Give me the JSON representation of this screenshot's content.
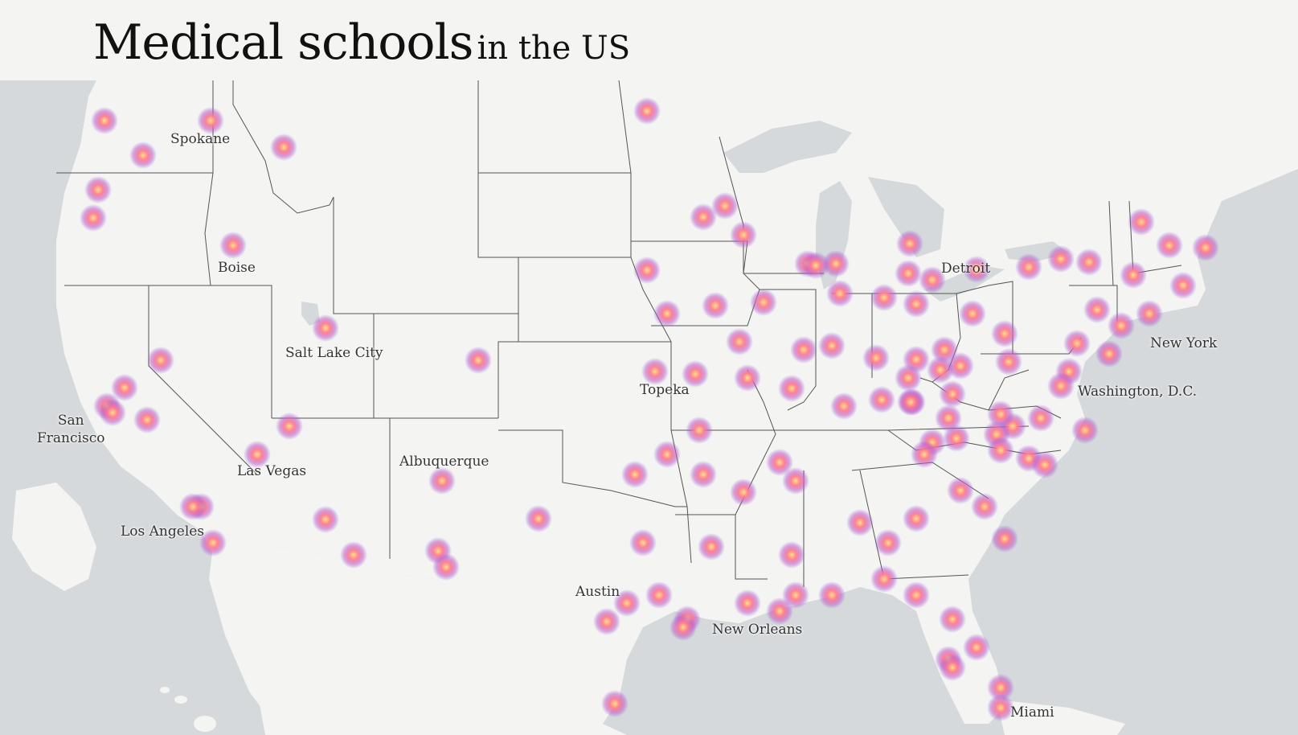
{
  "title": {
    "main": "Medical schools",
    "sub": "in the US"
  },
  "colors": {
    "water": "#d6d9db",
    "land": "#f4f4f2",
    "state_border": "#555555",
    "heat_core": "#ffd87a",
    "heat_mid": "#ff6f8a",
    "heat_edge": "#8a5ad8"
  },
  "cities": [
    {
      "name": "Spokane",
      "lines": [
        "Spokane"
      ]
    },
    {
      "name": "Boise",
      "lines": [
        "Boise"
      ]
    },
    {
      "name": "Salt Lake City",
      "lines": [
        "Salt Lake City"
      ]
    },
    {
      "name": "San Francisco",
      "lines": [
        "San",
        "Francisco"
      ]
    },
    {
      "name": "Las Vegas",
      "lines": [
        "Las Vegas"
      ]
    },
    {
      "name": "Los Angeles",
      "lines": [
        "Los Angeles"
      ]
    },
    {
      "name": "Albuquerque",
      "lines": [
        "Albuquerque"
      ]
    },
    {
      "name": "Topeka",
      "lines": [
        "Topeka"
      ]
    },
    {
      "name": "Austin",
      "lines": [
        "Austin"
      ]
    },
    {
      "name": "New Orleans",
      "lines": [
        "New Orleans"
      ]
    },
    {
      "name": "Detroit",
      "lines": [
        "Detroit"
      ]
    },
    {
      "name": "New York",
      "lines": [
        "New York"
      ]
    },
    {
      "name": "Washington, D.C.",
      "lines": [
        "Washington, D.C."
      ]
    },
    {
      "name": "Miami",
      "lines": [
        "Miami"
      ]
    }
  ]
}
